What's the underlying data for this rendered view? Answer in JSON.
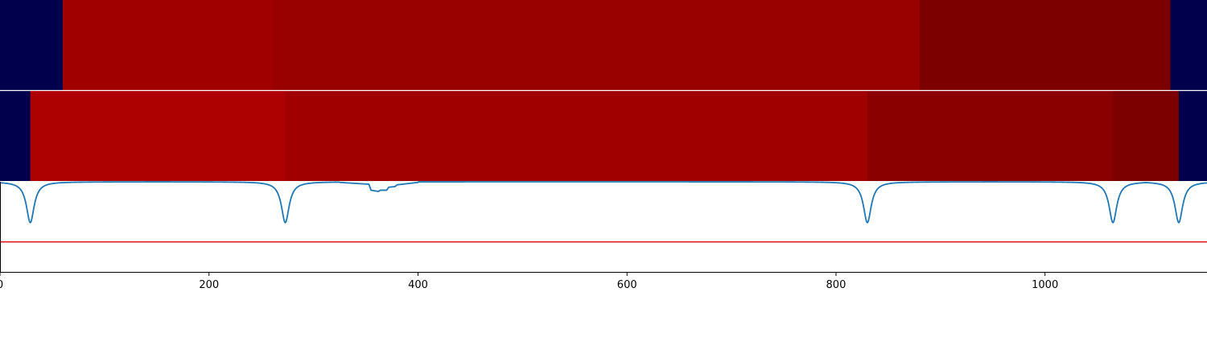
{
  "chart_data": {
    "type": "heatmap",
    "xlim": [
      0,
      1155
    ],
    "xticks": [
      0,
      200,
      400,
      600,
      800,
      1000
    ],
    "xtick_labels": [
      "0",
      "200",
      "400",
      "600",
      "800",
      "1000"
    ],
    "colors": {
      "background_segment": "#00004d",
      "signal_line": "#1f77b4",
      "threshold_line": "#e41a1c",
      "separator": "#ffffff",
      "axis": "#000000"
    },
    "heatmap_rows": [
      {
        "segments": [
          {
            "start": 0,
            "end": 60,
            "color": "#00004d"
          },
          {
            "start": 60,
            "end": 261,
            "color": "#a00000"
          },
          {
            "start": 261,
            "end": 880,
            "color": "#990000"
          },
          {
            "start": 880,
            "end": 1120,
            "color": "#7c0000"
          },
          {
            "start": 1120,
            "end": 1155,
            "color": "#00004d"
          }
        ]
      },
      {
        "segments": [
          {
            "start": 0,
            "end": 29,
            "color": "#00004d"
          },
          {
            "start": 29,
            "end": 273,
            "color": "#ad0000"
          },
          {
            "start": 273,
            "end": 830,
            "color": "#a00000"
          },
          {
            "start": 830,
            "end": 1065,
            "color": "#8a0000"
          },
          {
            "start": 1065,
            "end": 1128,
            "color": "#7c0000"
          },
          {
            "start": 1128,
            "end": 1155,
            "color": "#00004d"
          }
        ]
      }
    ],
    "signal": {
      "baseline": 1.0,
      "threshold": 0.0,
      "ylim": [
        -0.5,
        1.0
      ],
      "dips": [
        {
          "x": 29,
          "min": 0.32
        },
        {
          "x": 273,
          "min": 0.32
        },
        {
          "x": 830,
          "min": 0.32
        },
        {
          "x": 1065,
          "min": 0.32
        },
        {
          "x": 1128,
          "min": 0.32
        }
      ],
      "plateau": [
        {
          "x": 325,
          "y": 0.99
        },
        {
          "x": 353,
          "y": 0.96
        },
        {
          "x": 355,
          "y": 0.86
        },
        {
          "x": 362,
          "y": 0.84
        },
        {
          "x": 364,
          "y": 0.86
        },
        {
          "x": 370,
          "y": 0.86
        },
        {
          "x": 372,
          "y": 0.91
        },
        {
          "x": 378,
          "y": 0.92
        },
        {
          "x": 380,
          "y": 0.95
        },
        {
          "x": 400,
          "y": 0.99
        }
      ]
    }
  }
}
